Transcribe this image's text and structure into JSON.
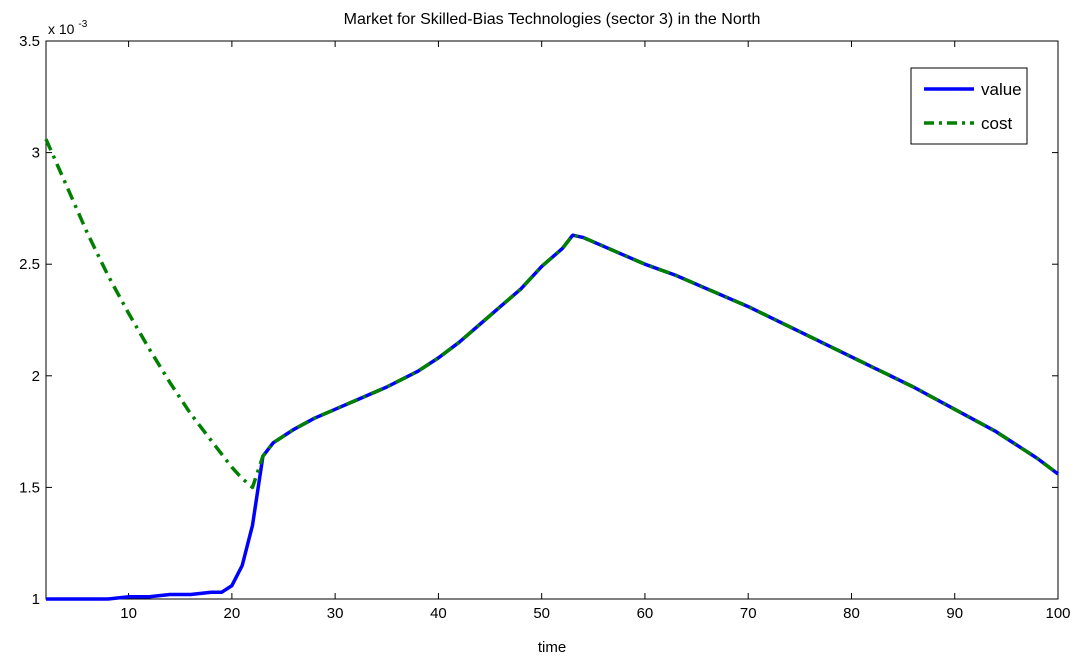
{
  "chart_data": {
    "type": "line",
    "title": "Market for Skilled-Bias Technologies (sector 3) in the North",
    "xlabel": "time",
    "ylabel": "",
    "xlim": [
      2,
      100
    ],
    "ylim": [
      0.001,
      0.0035
    ],
    "y_scale_label": "x 10",
    "y_scale_exponent": "-3",
    "xticks": [
      {
        "value": 10,
        "label": "10"
      },
      {
        "value": 20,
        "label": "20"
      },
      {
        "value": 30,
        "label": "30"
      },
      {
        "value": 40,
        "label": "40"
      },
      {
        "value": 50,
        "label": "50"
      },
      {
        "value": 60,
        "label": "60"
      },
      {
        "value": 70,
        "label": "70"
      },
      {
        "value": 80,
        "label": "80"
      },
      {
        "value": 90,
        "label": "90"
      },
      {
        "value": 100,
        "label": "100"
      }
    ],
    "yticks": [
      {
        "value": 0.001,
        "label": "1"
      },
      {
        "value": 0.0015,
        "label": "1.5"
      },
      {
        "value": 0.002,
        "label": "2"
      },
      {
        "value": 0.0025,
        "label": "2.5"
      },
      {
        "value": 0.003,
        "label": "3"
      },
      {
        "value": 0.0035,
        "label": "3.5"
      }
    ],
    "grid": false,
    "legend_position": "top-right",
    "series": [
      {
        "name": "value",
        "color": "#0000ff",
        "style": "solid",
        "x": [
          2,
          5,
          8,
          10,
          12,
          14,
          16,
          18,
          19,
          20,
          21,
          22,
          23,
          24,
          25,
          26,
          28,
          30,
          32,
          35,
          38,
          40,
          42,
          44,
          46,
          48,
          50,
          52,
          53,
          54,
          56,
          58,
          60,
          63,
          66,
          70,
          74,
          78,
          82,
          86,
          90,
          94,
          98,
          100
        ],
        "y": [
          0.001,
          0.001,
          0.001,
          0.00101,
          0.00101,
          0.00102,
          0.00102,
          0.00103,
          0.00103,
          0.00106,
          0.00115,
          0.00133,
          0.00164,
          0.0017,
          0.00173,
          0.00176,
          0.00181,
          0.00185,
          0.00189,
          0.00195,
          0.00202,
          0.00208,
          0.00215,
          0.00223,
          0.00231,
          0.00239,
          0.00249,
          0.00257,
          0.00263,
          0.00262,
          0.00258,
          0.00254,
          0.0025,
          0.00245,
          0.00239,
          0.00231,
          0.00222,
          0.00213,
          0.00204,
          0.00195,
          0.00185,
          0.00175,
          0.00163,
          0.00156
        ]
      },
      {
        "name": "cost",
        "color": "#008000",
        "style": "dash-dot",
        "x": [
          2,
          4,
          6,
          8,
          10,
          12,
          14,
          16,
          18,
          20,
          21,
          22,
          23,
          24,
          25,
          26,
          28,
          30,
          32,
          35,
          38,
          40,
          42,
          44,
          46,
          48,
          50,
          52,
          53,
          54,
          56,
          58,
          60,
          63,
          66,
          70,
          74,
          78,
          82,
          86,
          90,
          94,
          98,
          100
        ],
        "y": [
          0.00306,
          0.00285,
          0.00264,
          0.00245,
          0.00228,
          0.00212,
          0.00197,
          0.00183,
          0.00171,
          0.00159,
          0.00154,
          0.0015,
          0.00164,
          0.0017,
          0.00173,
          0.00176,
          0.00181,
          0.00185,
          0.00189,
          0.00195,
          0.00202,
          0.00208,
          0.00215,
          0.00223,
          0.00231,
          0.00239,
          0.00249,
          0.00257,
          0.00263,
          0.00262,
          0.00258,
          0.00254,
          0.0025,
          0.00245,
          0.00239,
          0.00231,
          0.00222,
          0.00213,
          0.00204,
          0.00195,
          0.00185,
          0.00175,
          0.00163,
          0.00156
        ]
      }
    ]
  }
}
